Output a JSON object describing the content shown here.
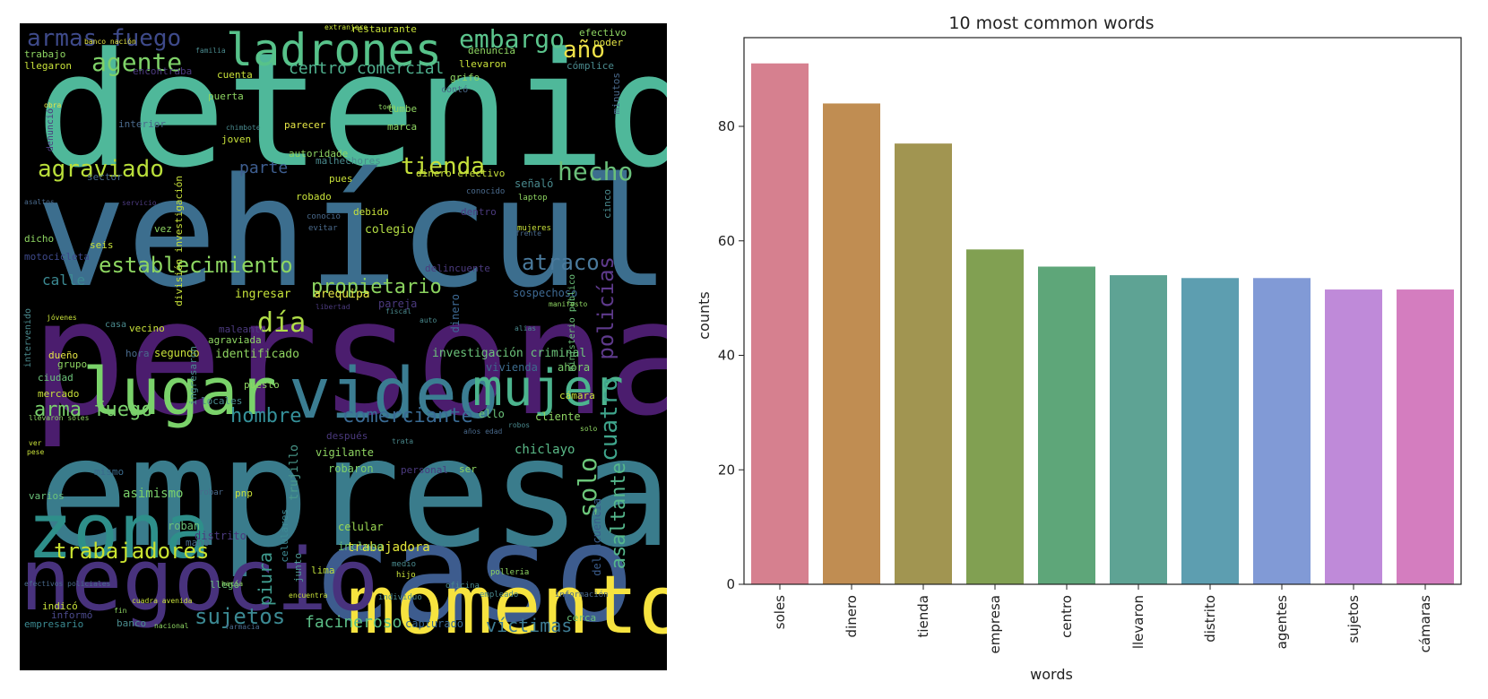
{
  "wordcloud": {
    "words": [
      {
        "text": "detenido",
        "color": "#4fb89a"
      },
      {
        "text": "vehículo",
        "color": "#3c6e8e"
      },
      {
        "text": "persona",
        "color": "#4b1d6e"
      },
      {
        "text": "empresa",
        "color": "#3a7c8c"
      },
      {
        "text": "caso",
        "color": "#3d5c8e"
      },
      {
        "text": "momento",
        "color": "#f6e33f"
      },
      {
        "text": "negocio",
        "color": "#48327d"
      },
      {
        "text": "zona",
        "color": "#2e8f8a"
      },
      {
        "text": "video",
        "color": "#3b7d92"
      },
      {
        "text": "lugar",
        "color": "#7ad26a"
      },
      {
        "text": "mujer",
        "color": "#4cb48e"
      },
      {
        "text": "ladrones",
        "color": "#57c28a"
      },
      {
        "text": "armas fuego",
        "color": "#3e4a8a"
      },
      {
        "text": "embargo",
        "color": "#5bc48c"
      },
      {
        "text": "agente",
        "color": "#7ed168"
      },
      {
        "text": "año",
        "color": "#f0e249"
      },
      {
        "text": "agraviado",
        "color": "#b9de3a"
      },
      {
        "text": "tienda",
        "color": "#c4e03a"
      },
      {
        "text": "hecho",
        "color": "#6ac07a"
      },
      {
        "text": "establecimiento",
        "color": "#8dd661"
      },
      {
        "text": "atraco",
        "color": "#4a7a9c"
      },
      {
        "text": "propietario",
        "color": "#8bd35f"
      },
      {
        "text": "día",
        "color": "#b0dd48"
      },
      {
        "text": "policías",
        "color": "#5e3a8c"
      },
      {
        "text": "cuatro",
        "color": "#3fa58c"
      },
      {
        "text": "asaltante",
        "color": "#55b88c"
      },
      {
        "text": "solo",
        "color": "#6cc77a"
      },
      {
        "text": "trabajadores",
        "color": "#c9e230"
      },
      {
        "text": "sujetos",
        "color": "#3c8a93"
      },
      {
        "text": "arma fuego",
        "color": "#79d06c"
      },
      {
        "text": "hombre",
        "color": "#35919a"
      },
      {
        "text": "comerciante",
        "color": "#3a6b94"
      },
      {
        "text": "centro comercial",
        "color": "#4fb08e"
      },
      {
        "text": "parte",
        "color": "#3e5e90"
      },
      {
        "text": "facineroso",
        "color": "#5bbd86"
      },
      {
        "text": "víctimas",
        "color": "#3e7c94"
      },
      {
        "text": "piura",
        "color": "#3f9b8e"
      },
      {
        "text": "calle",
        "color": "#3c8a93"
      },
      {
        "text": "trabajadora",
        "color": "#e4e83a"
      },
      {
        "text": "asimismo",
        "color": "#7ad06a"
      },
      {
        "text": "chiclayo",
        "color": "#5aba88"
      },
      {
        "text": "ingresar",
        "color": "#c6e23a"
      },
      {
        "text": "arequipa",
        "color": "#e6e646"
      },
      {
        "text": "delincuencia",
        "color": "#3a5c8c"
      },
      {
        "text": "identificado",
        "color": "#8fd560"
      },
      {
        "text": "investigación criminal",
        "color": "#6cc37a"
      },
      {
        "text": "colegio",
        "color": "#b3dd44"
      },
      {
        "text": "vivienda",
        "color": "#3d6c8e"
      },
      {
        "text": "ahora",
        "color": "#7bce6c"
      },
      {
        "text": "cliente",
        "color": "#8ed562"
      },
      {
        "text": "ello",
        "color": "#6cc37a"
      },
      {
        "text": "robaron",
        "color": "#7ed06a"
      },
      {
        "text": "vigilante",
        "color": "#8ed461"
      },
      {
        "text": "incluso",
        "color": "#6cc37a"
      },
      {
        "text": "celular",
        "color": "#9bd853"
      },
      {
        "text": "lima",
        "color": "#bfe03a"
      },
      {
        "text": "junto",
        "color": "#4f9a94"
      },
      {
        "text": "llegó",
        "color": "#6cc37a"
      },
      {
        "text": "capturado",
        "color": "#3a6a94"
      },
      {
        "text": "banco",
        "color": "#4a8c8e"
      },
      {
        "text": "indicó",
        "color": "#c8e13a"
      },
      {
        "text": "informó",
        "color": "#4b4a8c"
      },
      {
        "text": "empresario",
        "color": "#3b8a92"
      },
      {
        "text": "cerca",
        "color": "#6cc37a"
      },
      {
        "text": "trujillo",
        "color": "#4a9a8c"
      },
      {
        "text": "celulares",
        "color": "#3e8a94"
      },
      {
        "text": "roban",
        "color": "#6cc37a"
      },
      {
        "text": "mano",
        "color": "#4a6a8c"
      },
      {
        "text": "distrito",
        "color": "#4b3a7e"
      },
      {
        "text": "pnp",
        "color": "#c8e13a"
      },
      {
        "text": "robar",
        "color": "#4a6a8c"
      },
      {
        "text": "mismo",
        "color": "#3a6a8c"
      },
      {
        "text": "varios",
        "color": "#6cc37a"
      },
      {
        "text": "personal",
        "color": "#4a3a7e"
      },
      {
        "text": "ser",
        "color": "#8ed562"
      },
      {
        "text": "después",
        "color": "#4b3a7e"
      },
      {
        "text": "mercado",
        "color": "#c8e13a"
      },
      {
        "text": "ciudad",
        "color": "#6cc37a"
      },
      {
        "text": "grupo",
        "color": "#8ed562"
      },
      {
        "text": "dueño",
        "color": "#e6e646"
      },
      {
        "text": "segundo",
        "color": "#c8e13a"
      },
      {
        "text": "hora",
        "color": "#4a6a8c"
      },
      {
        "text": "puesto",
        "color": "#8ed562"
      },
      {
        "text": "locales",
        "color": "#4a8a8e"
      },
      {
        "text": "vecino",
        "color": "#c8e13a"
      },
      {
        "text": "agraviada",
        "color": "#8ed562"
      },
      {
        "text": "ingresaron",
        "color": "#4a8a8e"
      },
      {
        "text": "maleante",
        "color": "#4b3a7e"
      },
      {
        "text": "sospechoso",
        "color": "#3e6a94"
      },
      {
        "text": "dinero",
        "color": "#3e6a94"
      },
      {
        "text": "pareja",
        "color": "#4b3a7e"
      },
      {
        "text": "ministerio público",
        "color": "#6cc37a"
      },
      {
        "text": "cámara",
        "color": "#c8e13a"
      },
      {
        "text": "motocicleta",
        "color": "#3e4a8c"
      },
      {
        "text": "seis",
        "color": "#c8e13a"
      },
      {
        "text": "dicho",
        "color": "#8ed562"
      },
      {
        "text": "vez",
        "color": "#8ed562"
      },
      {
        "text": "debido",
        "color": "#c8e13a"
      },
      {
        "text": "robado",
        "color": "#c8e13a"
      },
      {
        "text": "dentro",
        "color": "#4b3a7e"
      },
      {
        "text": "pues",
        "color": "#c8e13a"
      },
      {
        "text": "malhechores",
        "color": "#4a8a8e"
      },
      {
        "text": "dinero efectivo",
        "color": "#c8e13a"
      },
      {
        "text": "autoridade",
        "color": "#8ed562"
      },
      {
        "text": "señaló",
        "color": "#4a8a8e"
      },
      {
        "text": "cinco",
        "color": "#4a8a8e"
      },
      {
        "text": "división investigación",
        "color": "#c8e13a"
      },
      {
        "text": "parecer",
        "color": "#e6e646"
      },
      {
        "text": "joven",
        "color": "#c8e13a"
      },
      {
        "text": "interior",
        "color": "#4a6a8c"
      },
      {
        "text": "puerta",
        "color": "#8ed562"
      },
      {
        "text": "cuenta",
        "color": "#c8e13a"
      },
      {
        "text": "encontraba",
        "color": "#4b3a7e"
      },
      {
        "text": "marca",
        "color": "#8ed562"
      },
      {
        "text": "tumbe",
        "color": "#8ed562"
      },
      {
        "text": "contó",
        "color": "#4a6a8c"
      },
      {
        "text": "grifo",
        "color": "#8ed562"
      },
      {
        "text": "llevaron",
        "color": "#c8e13a"
      },
      {
        "text": "denuncia",
        "color": "#8ed562"
      },
      {
        "text": "cómplice",
        "color": "#4a8a8e"
      },
      {
        "text": "minutos",
        "color": "#4a6a8c"
      },
      {
        "text": "poder",
        "color": "#e6e646"
      },
      {
        "text": "efectivo",
        "color": "#8ed562"
      },
      {
        "text": "restaurante",
        "color": "#c8e13a"
      },
      {
        "text": "trabajo",
        "color": "#8ed562"
      },
      {
        "text": "llegaron",
        "color": "#c8e13a"
      },
      {
        "text": "denunció",
        "color": "#4b3a7e"
      },
      {
        "text": "sector",
        "color": "#4a6a8c"
      },
      {
        "text": "intervenido",
        "color": "#4a8a8e"
      },
      {
        "text": "casa",
        "color": "#4a8a8e"
      },
      {
        "text": "delincuente",
        "color": "#4b3a7e"
      },
      {
        "text": "extranjero",
        "color": "#c8e13a"
      },
      {
        "text": "banco nación",
        "color": "#e6e646"
      },
      {
        "text": "familia",
        "color": "#4a8a8e"
      },
      {
        "text": "obra",
        "color": "#e6e646"
      },
      {
        "text": "chimbote",
        "color": "#4a8a8e"
      },
      {
        "text": "toda",
        "color": "#8ed562"
      },
      {
        "text": "laptop",
        "color": "#8ed562"
      },
      {
        "text": "mujeres",
        "color": "#c8e13a"
      },
      {
        "text": "conocido",
        "color": "#4a6a8c"
      },
      {
        "text": "evitar",
        "color": "#4a6a8c"
      },
      {
        "text": "conoció",
        "color": "#4a6a8c"
      },
      {
        "text": "jóvenes",
        "color": "#c8e13a"
      },
      {
        "text": "oficina",
        "color": "#4a8a8e"
      },
      {
        "text": "hijo",
        "color": "#c8e13a"
      },
      {
        "text": "medio",
        "color": "#4a8a8e"
      },
      {
        "text": "hacia",
        "color": "#8ed562"
      },
      {
        "text": "encuentra",
        "color": "#c8e13a"
      },
      {
        "text": "individuo",
        "color": "#4a8a8e"
      },
      {
        "text": "empleado",
        "color": "#4a8a8e"
      },
      {
        "text": "información",
        "color": "#4a6a8c"
      },
      {
        "text": "efectivos policiales",
        "color": "#4a6a8c"
      },
      {
        "text": "cuadra avenida",
        "color": "#c8e13a"
      },
      {
        "text": "fin",
        "color": "#8ed562"
      },
      {
        "text": "nacional",
        "color": "#8ed562"
      },
      {
        "text": "farmacia",
        "color": "#4a6a8c"
      },
      {
        "text": "ver",
        "color": "#c8e13a"
      },
      {
        "text": "pese",
        "color": "#c8e13a"
      },
      {
        "text": "llevaron soles",
        "color": "#8ed562"
      },
      {
        "text": "trata",
        "color": "#4a8a8e"
      },
      {
        "text": "robos",
        "color": "#4a8a8e"
      },
      {
        "text": "años edad",
        "color": "#4a6a8c"
      },
      {
        "text": "solo",
        "color": "#8ed562"
      },
      {
        "text": "fiscal",
        "color": "#4a8a8e"
      },
      {
        "text": "alias",
        "color": "#4a8a8e"
      },
      {
        "text": "polleria",
        "color": "#8ed562"
      },
      {
        "text": "manifesto",
        "color": "#8ed562"
      },
      {
        "text": "auto",
        "color": "#4a8a8e"
      },
      {
        "text": "libertad",
        "color": "#4b3a7e"
      },
      {
        "text": "frente",
        "color": "#4a6a8c"
      },
      {
        "text": "asaltos",
        "color": "#4a6a8c"
      },
      {
        "text": "servicio",
        "color": "#4b3a7e"
      }
    ]
  },
  "chart_data": {
    "type": "bar",
    "title": "10 most common words",
    "xlabel": "words",
    "ylabel": "counts",
    "categories": [
      "soles",
      "dinero",
      "tienda",
      "empresa",
      "centro",
      "llevaron",
      "distrito",
      "agentes",
      "sujetos",
      "cámaras"
    ],
    "values": [
      91,
      84,
      77,
      58.5,
      55.5,
      54,
      53.5,
      53.5,
      51.5,
      51.5
    ],
    "colors": [
      "#d6808f",
      "#c08d52",
      "#a19551",
      "#81a052",
      "#5ea679",
      "#5ea394",
      "#5d9eb0",
      "#819ad6",
      "#bf8ad9",
      "#d47dbf"
    ],
    "ylim": [
      0,
      95.5
    ],
    "yticks": [
      0,
      20,
      40,
      60,
      80
    ],
    "grid": false,
    "legend": "none"
  }
}
